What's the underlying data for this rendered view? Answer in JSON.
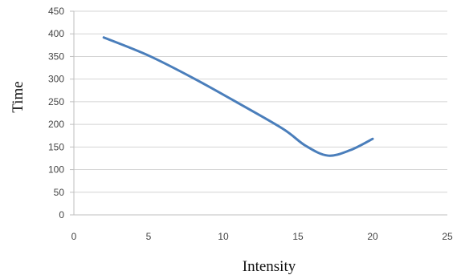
{
  "chart_data": {
    "type": "line",
    "title": "",
    "xlabel": "Intensity",
    "ylabel": "Time",
    "xlim": [
      0,
      25
    ],
    "ylim": [
      0,
      450
    ],
    "x_ticks": [
      0,
      5,
      10,
      15,
      20,
      25
    ],
    "y_ticks": [
      0,
      50,
      100,
      150,
      200,
      250,
      300,
      350,
      400,
      450
    ],
    "grid": "horizontal",
    "legend": "none",
    "series_color": "#4a7ebb",
    "series": [
      {
        "x": [
          2,
          5,
          8,
          11,
          14,
          15.5,
          17,
          18.5,
          20
        ],
        "y": [
          392,
          352,
          302,
          247,
          190,
          153,
          131,
          143,
          168
        ]
      }
    ]
  }
}
